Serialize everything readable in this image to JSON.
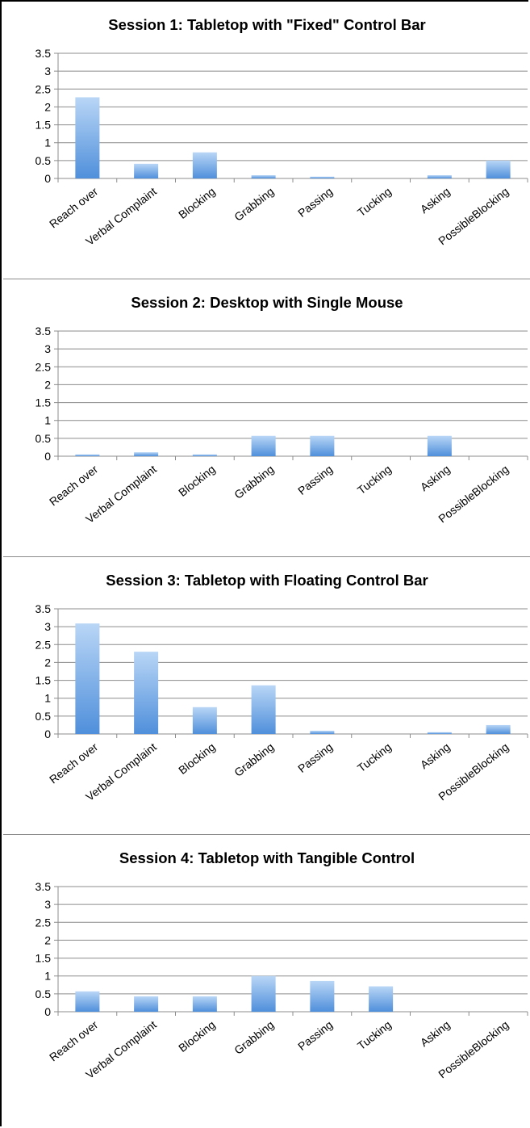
{
  "chart_data": [
    {
      "type": "bar",
      "title": "Session 1: Tabletop with \"Fixed\" Control Bar",
      "categories": [
        "Reach over",
        "Verbal Complaint",
        "Blocking",
        "Grabbing",
        "Passing",
        "Tucking",
        "Asking",
        "PossibleBlocking"
      ],
      "values": [
        2.27,
        0.41,
        0.73,
        0.09,
        0.05,
        0,
        0.09,
        0.5
      ],
      "ylim": [
        0,
        3.5
      ],
      "yticks": [
        "0",
        "0.5",
        "1",
        "1.5",
        "2",
        "2.5",
        "3",
        "3.5"
      ],
      "grid": true,
      "legend": "none"
    },
    {
      "type": "bar",
      "title": "Session 2: Desktop with Single Mouse",
      "categories": [
        "Reach over",
        "Verbal Complaint",
        "Blocking",
        "Grabbing",
        "Passing",
        "Tucking",
        "Asking",
        "PossibleBlocking"
      ],
      "values": [
        0.05,
        0.11,
        0.05,
        0.57,
        0.57,
        0,
        0.57,
        0
      ],
      "ylim": [
        0,
        3.5
      ],
      "yticks": [
        "0",
        "0.5",
        "1",
        "1.5",
        "2",
        "2.5",
        "3",
        "3.5"
      ],
      "grid": true,
      "legend": "none"
    },
    {
      "type": "bar",
      "title": "Session 3: Tabletop with Floating Control Bar",
      "categories": [
        "Reach over",
        "Verbal Complaint",
        "Blocking",
        "Grabbing",
        "Passing",
        "Tucking",
        "Asking",
        "PossibleBlocking"
      ],
      "values": [
        3.09,
        2.3,
        0.75,
        1.36,
        0.09,
        0,
        0.05,
        0.25
      ],
      "ylim": [
        0,
        3.5
      ],
      "yticks": [
        "0",
        "0.5",
        "1",
        "1.5",
        "2",
        "2.5",
        "3",
        "3.5"
      ],
      "grid": true,
      "legend": "none"
    },
    {
      "type": "bar",
      "title": "Session 4: Tabletop with Tangible Control",
      "categories": [
        "Reach over",
        "Verbal Complaint",
        "Blocking",
        "Grabbing",
        "Passing",
        "Tucking",
        "Asking",
        "PossibleBlocking"
      ],
      "values": [
        0.57,
        0.43,
        0.43,
        1.0,
        0.86,
        0.71,
        0,
        0
      ],
      "ylim": [
        0,
        3.5
      ],
      "yticks": [
        "0",
        "0.5",
        "1",
        "1.5",
        "2",
        "2.5",
        "3",
        "3.5"
      ],
      "grid": true,
      "legend": "none"
    }
  ],
  "colors": {
    "bar_top": "#b9d6f6",
    "bar_bottom": "#4f8fdb",
    "grid": "#8c8c8c"
  }
}
